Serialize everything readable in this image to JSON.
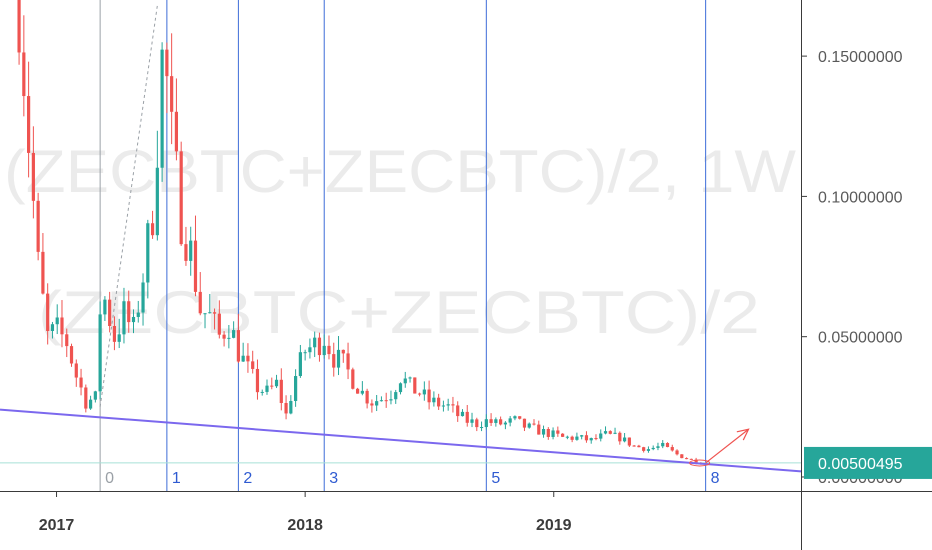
{
  "watermark": {
    "line1": "(ZECBTC+ZECBTC)/2, 1W",
    "line2": "(ZECBTC+ZECBTC)/2"
  },
  "price_badge": {
    "value": "0.00500495",
    "color": "#26a69a"
  },
  "colors": {
    "up": "#26a69a",
    "down": "#ef5350",
    "cycle_line": "#3d6cd8",
    "trend_line": "#7b68ee",
    "arrow": "#ef5350"
  },
  "chart_data": {
    "type": "candlestick",
    "y_ticks": [
      "0.15000000",
      "0.10000000",
      "0.05000000",
      "0.00000000"
    ],
    "y_tick_values": [
      0.15,
      0.1,
      0.05,
      0.0
    ],
    "ylim": [
      -0.005,
      0.17
    ],
    "x_ticks": [
      "2017",
      "2018",
      "2019"
    ],
    "x_tick_dates": [
      "2017-01-01",
      "2018-01-01",
      "2019-01-01"
    ],
    "xlim": [
      "2016-10-10",
      "2019-12-30"
    ],
    "close_series": [
      [
        "2016-11-07",
        0.17
      ],
      [
        "2016-11-21",
        0.12
      ],
      [
        "2016-12-05",
        0.075
      ],
      [
        "2016-12-19",
        0.05
      ],
      [
        "2017-01-02",
        0.052
      ],
      [
        "2017-01-16",
        0.048
      ],
      [
        "2017-01-30",
        0.036
      ],
      [
        "2017-02-13",
        0.027
      ],
      [
        "2017-02-27",
        0.028
      ],
      [
        "2017-03-06",
        0.06
      ],
      [
        "2017-03-13",
        0.063
      ],
      [
        "2017-03-27",
        0.05
      ],
      [
        "2017-04-10",
        0.058
      ],
      [
        "2017-04-24",
        0.052
      ],
      [
        "2017-05-08",
        0.072
      ],
      [
        "2017-05-22",
        0.095
      ],
      [
        "2017-06-05",
        0.148
      ],
      [
        "2017-06-12",
        0.14
      ],
      [
        "2017-06-19",
        0.12
      ],
      [
        "2017-07-03",
        0.093
      ],
      [
        "2017-07-17",
        0.08
      ],
      [
        "2017-07-31",
        0.06
      ],
      [
        "2017-08-14",
        0.057
      ],
      [
        "2017-08-28",
        0.05
      ],
      [
        "2017-09-11",
        0.055
      ],
      [
        "2017-09-25",
        0.045
      ],
      [
        "2017-10-09",
        0.038
      ],
      [
        "2017-10-23",
        0.032
      ],
      [
        "2017-11-06",
        0.03
      ],
      [
        "2017-11-20",
        0.033
      ],
      [
        "2017-12-04",
        0.022
      ],
      [
        "2017-12-18",
        0.036
      ],
      [
        "2018-01-01",
        0.045
      ],
      [
        "2018-01-15",
        0.047
      ],
      [
        "2018-01-29",
        0.05
      ],
      [
        "2018-02-12",
        0.043
      ],
      [
        "2018-02-26",
        0.04
      ],
      [
        "2018-03-12",
        0.035
      ],
      [
        "2018-03-26",
        0.03
      ],
      [
        "2018-04-09",
        0.027
      ],
      [
        "2018-04-23",
        0.028
      ],
      [
        "2018-05-07",
        0.03
      ],
      [
        "2018-05-21",
        0.036
      ],
      [
        "2018-06-04",
        0.032
      ],
      [
        "2018-06-18",
        0.03
      ],
      [
        "2018-07-02",
        0.027
      ],
      [
        "2018-07-16",
        0.026
      ],
      [
        "2018-07-30",
        0.025
      ],
      [
        "2018-08-13",
        0.022
      ],
      [
        "2018-08-27",
        0.02
      ],
      [
        "2018-09-10",
        0.019
      ],
      [
        "2018-09-24",
        0.02
      ],
      [
        "2018-10-08",
        0.019
      ],
      [
        "2018-10-22",
        0.019
      ],
      [
        "2018-11-05",
        0.02
      ],
      [
        "2018-11-19",
        0.018
      ],
      [
        "2018-12-03",
        0.017
      ],
      [
        "2018-12-17",
        0.016
      ],
      [
        "2019-01-01",
        0.015
      ],
      [
        "2019-01-14",
        0.014
      ],
      [
        "2019-02-04",
        0.014
      ],
      [
        "2019-02-25",
        0.013
      ],
      [
        "2019-03-18",
        0.015
      ],
      [
        "2019-04-08",
        0.014
      ],
      [
        "2019-04-29",
        0.011
      ],
      [
        "2019-05-20",
        0.01
      ],
      [
        "2019-06-10",
        0.011
      ],
      [
        "2019-07-01",
        0.008
      ],
      [
        "2019-07-22",
        0.006
      ],
      [
        "2019-08-05",
        0.005
      ]
    ],
    "trend_line": {
      "start": [
        "2016-10-10",
        0.024
      ],
      "end": [
        "2019-12-30",
        0.002
      ]
    },
    "cycle_lines": [
      {
        "label": "0",
        "date": "2017-03-06"
      },
      {
        "label": "1",
        "date": "2017-06-12"
      },
      {
        "label": "2",
        "date": "2017-09-25"
      },
      {
        "label": "3",
        "date": "2018-01-29"
      },
      {
        "label": "5",
        "date": "2018-09-24"
      },
      {
        "label": "8",
        "date": "2019-08-12"
      }
    ],
    "current_price_line": 0.00500495,
    "legend": "none",
    "grid": false
  }
}
